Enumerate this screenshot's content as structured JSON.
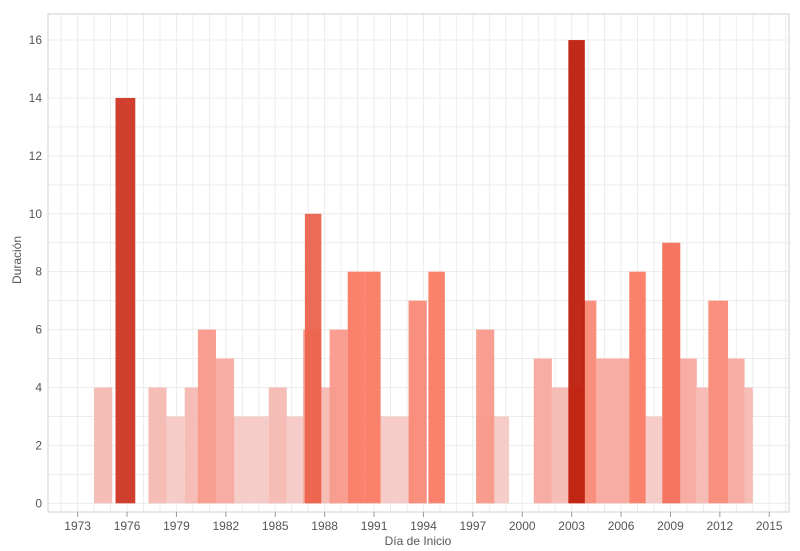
{
  "chart_data": {
    "type": "bar",
    "title": "",
    "xlabel": "Día de Inicio",
    "ylabel": "Duración",
    "xlim": [
      1971.2,
      2016.2
    ],
    "ylim": [
      -0.3,
      16.9
    ],
    "x_ticks": [
      1973,
      1976,
      1979,
      1982,
      1985,
      1988,
      1991,
      1994,
      1997,
      2000,
      2003,
      2006,
      2009,
      2012,
      2015
    ],
    "y_ticks": [
      0,
      2,
      4,
      6,
      8,
      10,
      12,
      14,
      16
    ],
    "grid": true,
    "legend": "none",
    "color_scale": {
      "low": "#f5c9c6",
      "mid": "#fa7a63",
      "high": "#be1d0c"
    },
    "bars": [
      {
        "start": 1974.0,
        "end": 1975.1,
        "value": 4
      },
      {
        "start": 1975.3,
        "end": 1976.5,
        "value": 14
      },
      {
        "start": 1977.3,
        "end": 1978.4,
        "value": 4
      },
      {
        "start": 1978.4,
        "end": 1979.5,
        "value": 3
      },
      {
        "start": 1979.5,
        "end": 1980.5,
        "value": 4
      },
      {
        "start": 1980.3,
        "end": 1981.4,
        "value": 6
      },
      {
        "start": 1981.4,
        "end": 1982.5,
        "value": 5
      },
      {
        "start": 1982.4,
        "end": 1984.6,
        "value": 3
      },
      {
        "start": 1984.6,
        "end": 1985.7,
        "value": 4
      },
      {
        "start": 1985.7,
        "end": 1986.7,
        "value": 3
      },
      {
        "start": 1986.7,
        "end": 1987.8,
        "value": 6
      },
      {
        "start": 1986.8,
        "end": 1987.8,
        "value": 10
      },
      {
        "start": 1987.8,
        "end": 1988.8,
        "value": 4
      },
      {
        "start": 1988.3,
        "end": 1989.4,
        "value": 6
      },
      {
        "start": 1989.4,
        "end": 1990.4,
        "value": 8
      },
      {
        "start": 1990.4,
        "end": 1991.4,
        "value": 8
      },
      {
        "start": 1991.4,
        "end": 1993.4,
        "value": 3
      },
      {
        "start": 1993.1,
        "end": 1994.2,
        "value": 7
      },
      {
        "start": 1994.3,
        "end": 1995.3,
        "value": 8
      },
      {
        "start": 1997.2,
        "end": 1998.3,
        "value": 6
      },
      {
        "start": 1997.2,
        "end": 1999.2,
        "value": 3
      },
      {
        "start": 2000.7,
        "end": 2001.8,
        "value": 5
      },
      {
        "start": 2001.8,
        "end": 2003.6,
        "value": 4
      },
      {
        "start": 2002.8,
        "end": 2003.8,
        "value": 16
      },
      {
        "start": 2003.7,
        "end": 2004.5,
        "value": 7
      },
      {
        "start": 2004.5,
        "end": 2006.5,
        "value": 5
      },
      {
        "start": 2006.5,
        "end": 2007.5,
        "value": 8
      },
      {
        "start": 2007.5,
        "end": 2008.5,
        "value": 3
      },
      {
        "start": 2008.5,
        "end": 2009.6,
        "value": 9
      },
      {
        "start": 2009.6,
        "end": 2010.6,
        "value": 5
      },
      {
        "start": 2010.6,
        "end": 2011.3,
        "value": 4
      },
      {
        "start": 2011.3,
        "end": 2012.5,
        "value": 7
      },
      {
        "start": 2012.5,
        "end": 2013.5,
        "value": 5
      },
      {
        "start": 2013.5,
        "end": 2014.0,
        "value": 4
      }
    ]
  }
}
